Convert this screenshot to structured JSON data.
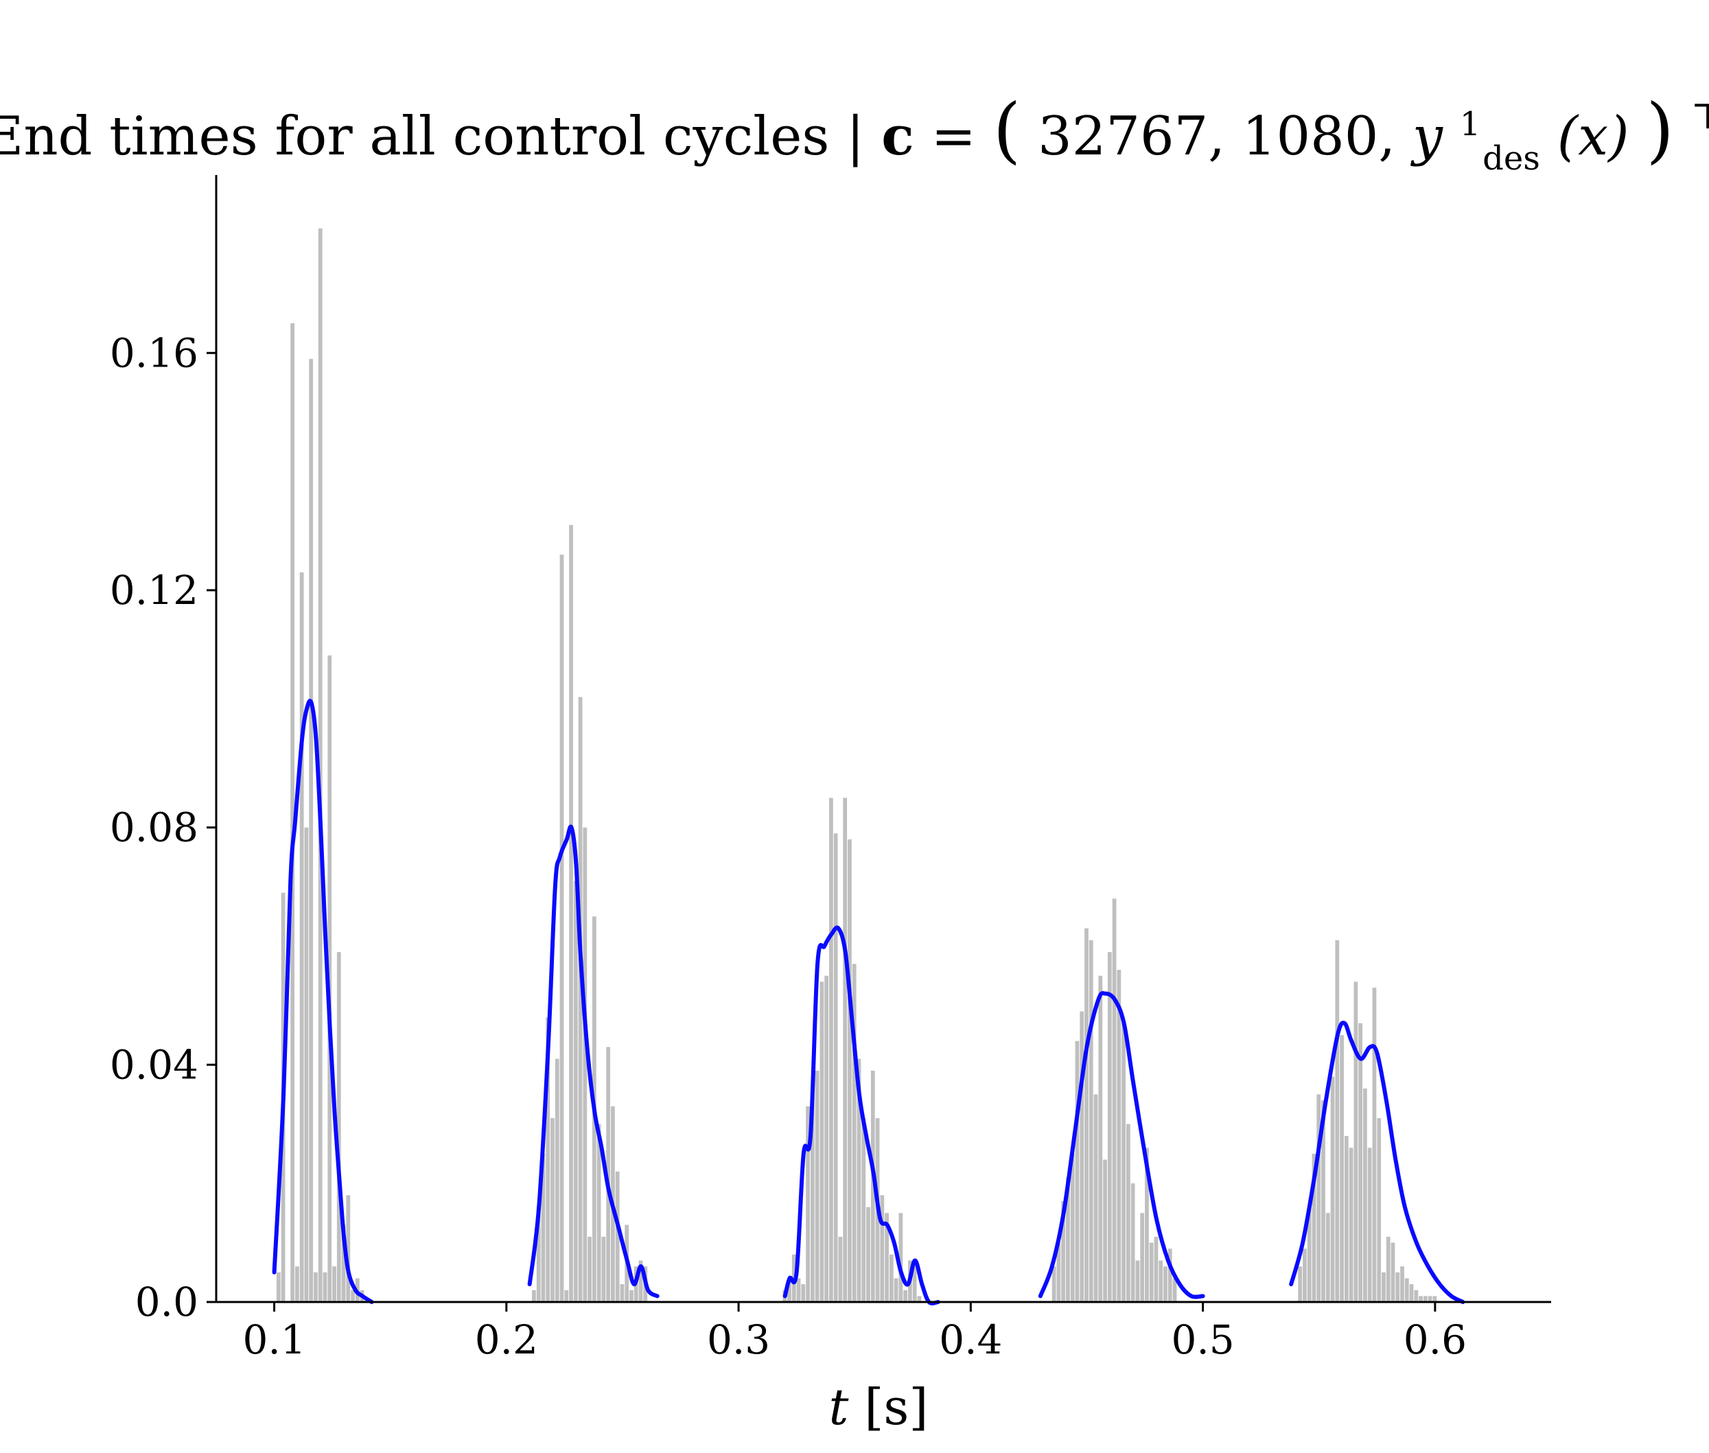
{
  "chart_data": {
    "type": "bar",
    "title": {
      "main": "End times for all control cycles | ",
      "bold": "c",
      "eq": " = ",
      "lparen": "(",
      "args": "32767, 1080, ",
      "y": "y",
      "sup": "1",
      "sub": "des",
      "xarg": "(x)",
      "rparen": ")",
      "transpose": "⊤"
    },
    "xlabel": {
      "var": "t",
      "unit": " [s]"
    },
    "ylabel": "",
    "xlim": [
      0.075,
      0.65
    ],
    "ylim": [
      0.0,
      0.19
    ],
    "x_ticks": [
      0.1,
      0.2,
      0.3,
      0.4,
      0.5,
      0.6
    ],
    "x_tick_labels": [
      "0.1",
      "0.2",
      "0.3",
      "0.4",
      "0.5",
      "0.6"
    ],
    "y_ticks": [
      0.0,
      0.04,
      0.08,
      0.12,
      0.16
    ],
    "y_tick_labels": [
      "0.0",
      "0.04",
      "0.08",
      "0.12",
      "0.16"
    ],
    "grid": false,
    "colors": {
      "histogram": "#bfbfbf",
      "kde": "#0a0aff",
      "axis": "#000000"
    },
    "histogram_bin_width": 0.002,
    "histogram_bins": [
      [
        0.102,
        0.005
      ],
      [
        0.104,
        0.069
      ],
      [
        0.106,
        0.0
      ],
      [
        0.108,
        0.165
      ],
      [
        0.11,
        0.006
      ],
      [
        0.112,
        0.123
      ],
      [
        0.114,
        0.08
      ],
      [
        0.116,
        0.159
      ],
      [
        0.118,
        0.005
      ],
      [
        0.12,
        0.181
      ],
      [
        0.122,
        0.005
      ],
      [
        0.124,
        0.109
      ],
      [
        0.126,
        0.006
      ],
      [
        0.128,
        0.059
      ],
      [
        0.13,
        0.013
      ],
      [
        0.132,
        0.018
      ],
      [
        0.134,
        0.002
      ],
      [
        0.136,
        0.004
      ],
      [
        0.138,
        0.002
      ],
      [
        0.212,
        0.002
      ],
      [
        0.214,
        0.016
      ],
      [
        0.216,
        0.025
      ],
      [
        0.218,
        0.048
      ],
      [
        0.22,
        0.031
      ],
      [
        0.222,
        0.041
      ],
      [
        0.224,
        0.126
      ],
      [
        0.226,
        0.002
      ],
      [
        0.228,
        0.131
      ],
      [
        0.23,
        0.071
      ],
      [
        0.232,
        0.102
      ],
      [
        0.234,
        0.08
      ],
      [
        0.236,
        0.011
      ],
      [
        0.238,
        0.065
      ],
      [
        0.24,
        0.03
      ],
      [
        0.242,
        0.011
      ],
      [
        0.244,
        0.043
      ],
      [
        0.246,
        0.033
      ],
      [
        0.248,
        0.022
      ],
      [
        0.25,
        0.003
      ],
      [
        0.252,
        0.013
      ],
      [
        0.254,
        0.002
      ],
      [
        0.256,
        0.006
      ],
      [
        0.258,
        0.007
      ],
      [
        0.26,
        0.006
      ],
      [
        0.32,
        0.002
      ],
      [
        0.322,
        0.004
      ],
      [
        0.324,
        0.008
      ],
      [
        0.326,
        0.004
      ],
      [
        0.328,
        0.003
      ],
      [
        0.33,
        0.033
      ],
      [
        0.332,
        0.035
      ],
      [
        0.334,
        0.039
      ],
      [
        0.336,
        0.054
      ],
      [
        0.338,
        0.055
      ],
      [
        0.34,
        0.085
      ],
      [
        0.342,
        0.079
      ],
      [
        0.344,
        0.011
      ],
      [
        0.346,
        0.085
      ],
      [
        0.348,
        0.078
      ],
      [
        0.35,
        0.057
      ],
      [
        0.352,
        0.041
      ],
      [
        0.354,
        0.031
      ],
      [
        0.356,
        0.016
      ],
      [
        0.358,
        0.039
      ],
      [
        0.36,
        0.031
      ],
      [
        0.362,
        0.018
      ],
      [
        0.364,
        0.015
      ],
      [
        0.366,
        0.008
      ],
      [
        0.368,
        0.004
      ],
      [
        0.37,
        0.015
      ],
      [
        0.372,
        0.002
      ],
      [
        0.374,
        0.007
      ],
      [
        0.376,
        0.007
      ],
      [
        0.378,
        0.001
      ],
      [
        0.436,
        0.006
      ],
      [
        0.438,
        0.01
      ],
      [
        0.44,
        0.017
      ],
      [
        0.442,
        0.021
      ],
      [
        0.444,
        0.025
      ],
      [
        0.446,
        0.044
      ],
      [
        0.448,
        0.049
      ],
      [
        0.45,
        0.063
      ],
      [
        0.452,
        0.061
      ],
      [
        0.454,
        0.035
      ],
      [
        0.456,
        0.055
      ],
      [
        0.458,
        0.024
      ],
      [
        0.46,
        0.059
      ],
      [
        0.462,
        0.068
      ],
      [
        0.464,
        0.056
      ],
      [
        0.466,
        0.047
      ],
      [
        0.468,
        0.03
      ],
      [
        0.47,
        0.02
      ],
      [
        0.472,
        0.007
      ],
      [
        0.474,
        0.015
      ],
      [
        0.476,
        0.026
      ],
      [
        0.478,
        0.01
      ],
      [
        0.48,
        0.011
      ],
      [
        0.482,
        0.007
      ],
      [
        0.484,
        0.006
      ],
      [
        0.486,
        0.009
      ],
      [
        0.488,
        0.004
      ],
      [
        0.542,
        0.006
      ],
      [
        0.544,
        0.009
      ],
      [
        0.546,
        0.016
      ],
      [
        0.548,
        0.025
      ],
      [
        0.55,
        0.035
      ],
      [
        0.552,
        0.034
      ],
      [
        0.554,
        0.015
      ],
      [
        0.556,
        0.038
      ],
      [
        0.558,
        0.061
      ],
      [
        0.56,
        0.045
      ],
      [
        0.562,
        0.028
      ],
      [
        0.564,
        0.026
      ],
      [
        0.566,
        0.054
      ],
      [
        0.568,
        0.047
      ],
      [
        0.57,
        0.036
      ],
      [
        0.572,
        0.026
      ],
      [
        0.574,
        0.053
      ],
      [
        0.576,
        0.031
      ],
      [
        0.578,
        0.005
      ],
      [
        0.58,
        0.011
      ],
      [
        0.582,
        0.01
      ],
      [
        0.584,
        0.005
      ],
      [
        0.586,
        0.006
      ],
      [
        0.588,
        0.004
      ],
      [
        0.59,
        0.003
      ],
      [
        0.592,
        0.002
      ],
      [
        0.594,
        0.001
      ],
      [
        0.596,
        0.001
      ],
      [
        0.598,
        0.001
      ],
      [
        0.6,
        0.001
      ]
    ],
    "kde_curves": [
      [
        [
          0.1,
          0.005
        ],
        [
          0.104,
          0.035
        ],
        [
          0.107,
          0.071
        ],
        [
          0.109,
          0.081
        ],
        [
          0.112,
          0.095
        ],
        [
          0.114,
          0.1
        ],
        [
          0.116,
          0.101
        ],
        [
          0.118,
          0.095
        ],
        [
          0.12,
          0.08
        ],
        [
          0.122,
          0.062
        ],
        [
          0.124,
          0.046
        ],
        [
          0.126,
          0.032
        ],
        [
          0.128,
          0.021
        ],
        [
          0.13,
          0.011
        ],
        [
          0.132,
          0.005
        ],
        [
          0.135,
          0.002
        ],
        [
          0.138,
          0.001
        ],
        [
          0.142,
          0.0
        ]
      ],
      [
        [
          0.21,
          0.003
        ],
        [
          0.214,
          0.016
        ],
        [
          0.218,
          0.043
        ],
        [
          0.221,
          0.07
        ],
        [
          0.223,
          0.075
        ],
        [
          0.226,
          0.078
        ],
        [
          0.228,
          0.08
        ],
        [
          0.23,
          0.074
        ],
        [
          0.232,
          0.058
        ],
        [
          0.235,
          0.042
        ],
        [
          0.238,
          0.032
        ],
        [
          0.241,
          0.026
        ],
        [
          0.244,
          0.019
        ],
        [
          0.248,
          0.013
        ],
        [
          0.252,
          0.007
        ],
        [
          0.255,
          0.003
        ],
        [
          0.258,
          0.006
        ],
        [
          0.261,
          0.002
        ],
        [
          0.265,
          0.001
        ]
      ],
      [
        [
          0.32,
          0.001
        ],
        [
          0.322,
          0.004
        ],
        [
          0.325,
          0.005
        ],
        [
          0.328,
          0.025
        ],
        [
          0.331,
          0.028
        ],
        [
          0.334,
          0.057
        ],
        [
          0.337,
          0.06
        ],
        [
          0.34,
          0.062
        ],
        [
          0.343,
          0.063
        ],
        [
          0.346,
          0.059
        ],
        [
          0.349,
          0.047
        ],
        [
          0.352,
          0.035
        ],
        [
          0.355,
          0.028
        ],
        [
          0.358,
          0.022
        ],
        [
          0.361,
          0.014
        ],
        [
          0.364,
          0.013
        ],
        [
          0.367,
          0.01
        ],
        [
          0.37,
          0.005
        ],
        [
          0.373,
          0.003
        ],
        [
          0.376,
          0.007
        ],
        [
          0.379,
          0.003
        ],
        [
          0.382,
          0.0
        ],
        [
          0.386,
          0.0
        ]
      ],
      [
        [
          0.43,
          0.001
        ],
        [
          0.435,
          0.006
        ],
        [
          0.44,
          0.015
        ],
        [
          0.445,
          0.029
        ],
        [
          0.45,
          0.043
        ],
        [
          0.455,
          0.051
        ],
        [
          0.458,
          0.052
        ],
        [
          0.462,
          0.051
        ],
        [
          0.466,
          0.047
        ],
        [
          0.47,
          0.037
        ],
        [
          0.475,
          0.025
        ],
        [
          0.48,
          0.014
        ],
        [
          0.485,
          0.007
        ],
        [
          0.49,
          0.003
        ],
        [
          0.495,
          0.001
        ],
        [
          0.5,
          0.001
        ]
      ],
      [
        [
          0.538,
          0.003
        ],
        [
          0.543,
          0.01
        ],
        [
          0.548,
          0.021
        ],
        [
          0.553,
          0.034
        ],
        [
          0.558,
          0.045
        ],
        [
          0.561,
          0.047
        ],
        [
          0.564,
          0.044
        ],
        [
          0.568,
          0.041
        ],
        [
          0.572,
          0.043
        ],
        [
          0.575,
          0.042
        ],
        [
          0.579,
          0.034
        ],
        [
          0.583,
          0.024
        ],
        [
          0.587,
          0.016
        ],
        [
          0.592,
          0.01
        ],
        [
          0.597,
          0.006
        ],
        [
          0.602,
          0.003
        ],
        [
          0.607,
          0.001
        ],
        [
          0.612,
          0.0
        ]
      ]
    ]
  }
}
